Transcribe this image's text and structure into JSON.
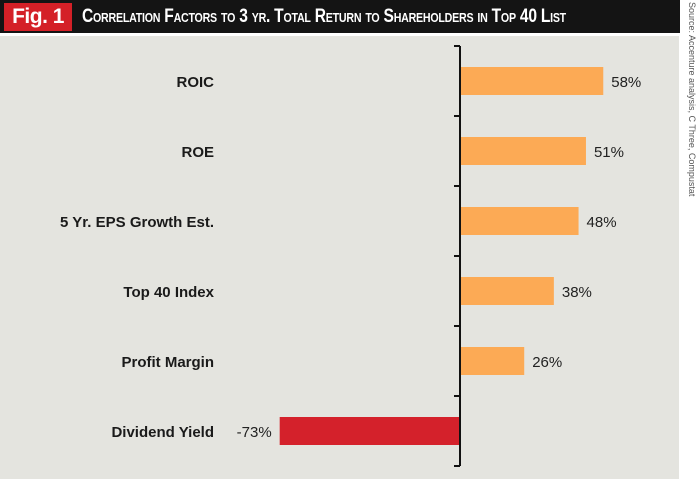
{
  "header": {
    "fig_label": "Fig. 1",
    "title": "Correlation Factors to 3 yr. Total Return to Shareholders in Top 40 List"
  },
  "source": "Source: Accenture analysis, C Three, Compustat",
  "colors": {
    "positive": "#fcaa55",
    "negative": "#d4212b",
    "background": "#e4e4df"
  },
  "chart_data": {
    "type": "bar",
    "orientation": "horizontal",
    "title": "Correlation Factors to 3 yr. Total Return to Shareholders in Top 40 List",
    "categories": [
      "ROIC",
      "ROE",
      "5 Yr. EPS Growth Est.",
      "Top 40 Index",
      "Profit Margin",
      "Dividend Yield"
    ],
    "values": [
      58,
      51,
      48,
      38,
      26,
      -73
    ],
    "labels": [
      "58%",
      "51%",
      "48%",
      "38%",
      "26%",
      "-73%"
    ],
    "unit": "%",
    "xlim": [
      -73,
      58
    ],
    "grid": false
  }
}
